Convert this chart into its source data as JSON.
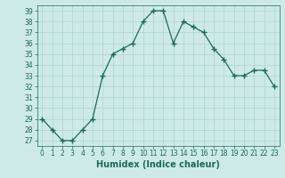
{
  "title": "",
  "xlabel": "Humidex (Indice chaleur)",
  "ylabel": "",
  "x": [
    0,
    1,
    2,
    3,
    4,
    5,
    6,
    7,
    8,
    9,
    10,
    11,
    12,
    13,
    14,
    15,
    16,
    17,
    18,
    19,
    20,
    21,
    22,
    23
  ],
  "y": [
    29,
    28,
    27,
    27,
    28,
    29,
    33,
    35,
    35.5,
    36,
    38,
    39,
    39,
    36,
    38,
    37.5,
    37,
    35.5,
    34.5,
    33,
    33,
    33.5,
    33.5,
    32
  ],
  "line_color": "#1a6b5a",
  "marker": "+",
  "marker_size": 4,
  "marker_linewidth": 1.0,
  "bg_color": "#ceeae7",
  "grid_color": "#aed4d0",
  "ylim_min": 26.5,
  "ylim_max": 39.5,
  "yticks": [
    27,
    28,
    29,
    30,
    31,
    32,
    33,
    34,
    35,
    36,
    37,
    38,
    39
  ],
  "xticks": [
    0,
    1,
    2,
    3,
    4,
    5,
    6,
    7,
    8,
    9,
    10,
    11,
    12,
    13,
    14,
    15,
    16,
    17,
    18,
    19,
    20,
    21,
    22,
    23
  ],
  "tick_fontsize": 5.5,
  "label_fontsize": 7,
  "line_width": 0.9
}
